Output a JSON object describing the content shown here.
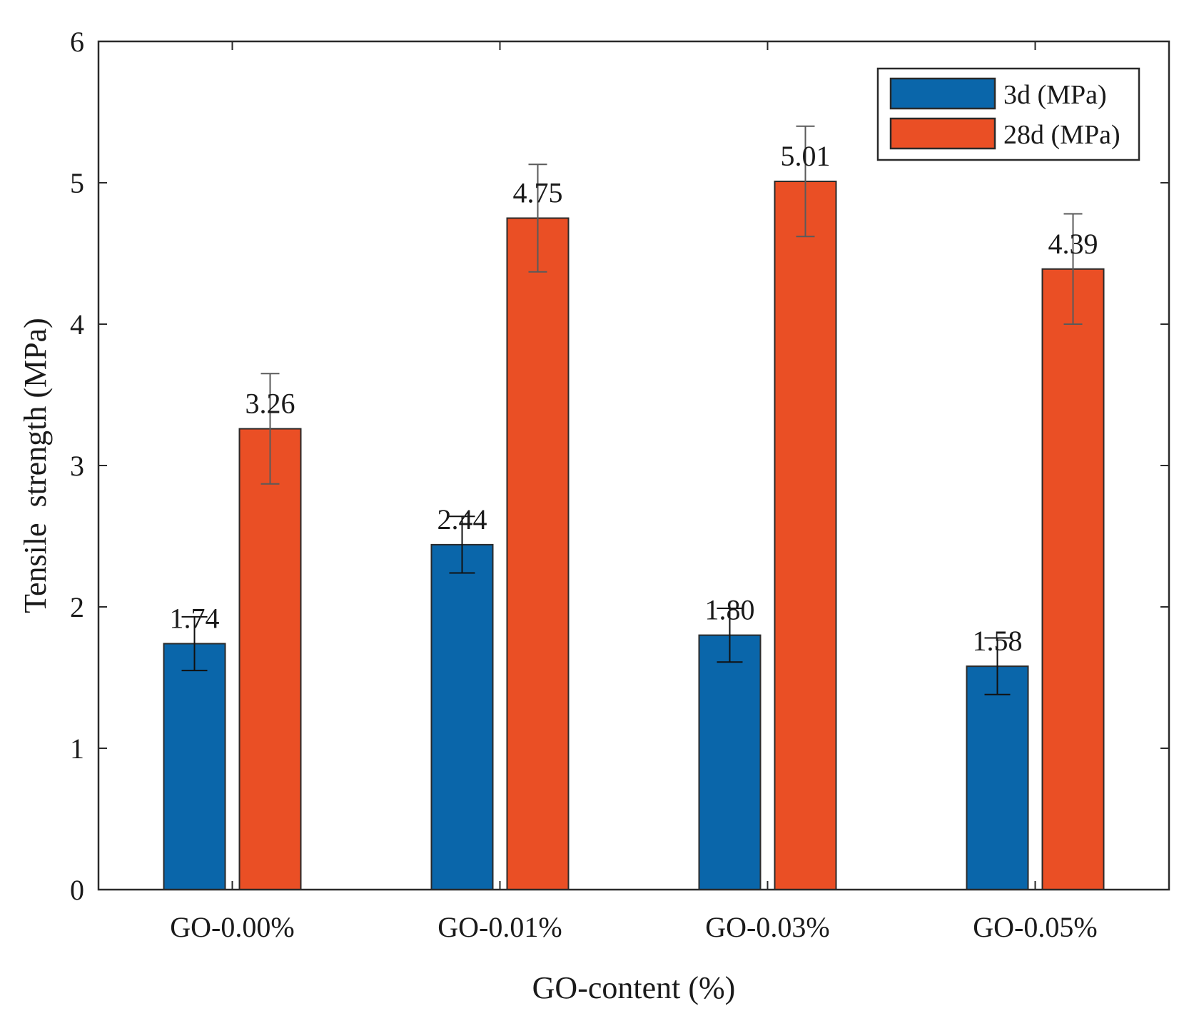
{
  "chart_data": {
    "type": "bar",
    "title": "",
    "xlabel": "GO-content (%)",
    "ylabel": "Tensile  strength (MPa)",
    "categories": [
      "GO-0.00%",
      "GO-0.01%",
      "GO-0.03%",
      "GO-0.05%"
    ],
    "ylim": [
      0,
      6
    ],
    "yticks": [
      0,
      1,
      2,
      3,
      4,
      5,
      6
    ],
    "grid": false,
    "legend_position": "top-right",
    "series": [
      {
        "name": "3d (MPa)",
        "color": "#0a66aa",
        "values": [
          1.74,
          2.44,
          1.8,
          1.58
        ],
        "labels": [
          "1.74",
          "2.44",
          "1.80",
          "1.58"
        ],
        "errors": [
          0.19,
          0.2,
          0.19,
          0.2
        ]
      },
      {
        "name": "28d (MPa)",
        "color": "#ea4f25",
        "values": [
          3.26,
          4.75,
          5.01,
          4.39
        ],
        "labels": [
          "3.26",
          "4.75",
          "5.01",
          "4.39"
        ],
        "errors": [
          0.39,
          0.38,
          0.39,
          0.39
        ]
      }
    ]
  }
}
